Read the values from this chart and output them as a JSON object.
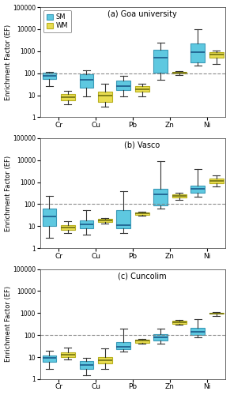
{
  "panels": [
    {
      "title": "(a) Goa university",
      "SM": {
        "Cr": {
          "whislo": 25,
          "q1": 55,
          "med": 75,
          "q3": 105,
          "whishi": 115
        },
        "Cu": {
          "whislo": 9,
          "q1": 22,
          "med": 50,
          "q3": 90,
          "whishi": 135
        },
        "Pb": {
          "whislo": 9,
          "q1": 17,
          "med": 25,
          "q3": 45,
          "whishi": 75
        },
        "Zn": {
          "whislo": 50,
          "q1": 110,
          "med": 500,
          "q3": 1200,
          "whishi": 2500
        },
        "Ni": {
          "whislo": 220,
          "q1": 320,
          "med": 900,
          "q3": 2200,
          "whishi": 10000
        }
      },
      "WM": {
        "Cr": {
          "whislo": 4,
          "q1": 6,
          "med": 8,
          "q3": 11,
          "whishi": 16
        },
        "Cu": {
          "whislo": 3,
          "q1": 5,
          "med": 10,
          "q3": 14,
          "whishi": 33
        },
        "Pb": {
          "whislo": 9,
          "q1": 14,
          "med": 19,
          "q3": 27,
          "whishi": 33
        },
        "Zn": {
          "whislo": 82,
          "q1": 95,
          "med": 105,
          "q3": 114,
          "whishi": 120
        },
        "Ni": {
          "whislo": 260,
          "q1": 500,
          "med": 680,
          "q3": 880,
          "whishi": 1100
        }
      }
    },
    {
      "title": "(b) Vasco",
      "SM": {
        "Cr": {
          "whislo": 3,
          "q1": 10,
          "med": 28,
          "q3": 65,
          "whishi": 230
        },
        "Cu": {
          "whislo": 4,
          "q1": 8,
          "med": 12,
          "q3": 18,
          "whishi": 55
        },
        "Pb": {
          "whislo": 5,
          "q1": 8,
          "med": 11,
          "q3": 55,
          "whishi": 380
        },
        "Zn": {
          "whislo": 65,
          "q1": 88,
          "med": 280,
          "q3": 480,
          "whishi": 9000
        },
        "Ni": {
          "whislo": 210,
          "q1": 340,
          "med": 480,
          "q3": 680,
          "whishi": 3800
        }
      },
      "WM": {
        "Cr": {
          "whislo": 5,
          "q1": 7,
          "med": 9,
          "q3": 11,
          "whishi": 17
        },
        "Cu": {
          "whislo": 13,
          "q1": 15,
          "med": 18,
          "q3": 21,
          "whishi": 24
        },
        "Pb": {
          "whislo": 29,
          "q1": 33,
          "med": 37,
          "q3": 41,
          "whishi": 44
        },
        "Zn": {
          "whislo": 155,
          "q1": 205,
          "med": 245,
          "q3": 285,
          "whishi": 325
        },
        "Ni": {
          "whislo": 620,
          "q1": 900,
          "med": 1100,
          "q3": 1400,
          "whishi": 2000
        }
      }
    },
    {
      "title": "(c) Cuncolim",
      "SM": {
        "Cr": {
          "whislo": 3,
          "q1": 6,
          "med": 9,
          "q3": 12,
          "whishi": 20
        },
        "Cu": {
          "whislo": 1.5,
          "q1": 3,
          "med": 4.5,
          "q3": 6.5,
          "whishi": 9
        },
        "Pb": {
          "whislo": 18,
          "q1": 22,
          "med": 30,
          "q3": 50,
          "whishi": 190
        },
        "Zn": {
          "whislo": 40,
          "q1": 55,
          "med": 78,
          "q3": 108,
          "whishi": 195
        },
        "Ni": {
          "whislo": 82,
          "q1": 100,
          "med": 145,
          "q3": 215,
          "whishi": 530
        }
      },
      "WM": {
        "Cr": {
          "whislo": 8,
          "q1": 10,
          "med": 13,
          "q3": 16,
          "whishi": 28
        },
        "Cu": {
          "whislo": 3,
          "q1": 5,
          "med": 7.5,
          "q3": 10,
          "whishi": 24
        },
        "Pb": {
          "whislo": 41,
          "q1": 46,
          "med": 55,
          "q3": 64,
          "whishi": 69
        },
        "Zn": {
          "whislo": 285,
          "q1": 325,
          "med": 380,
          "q3": 445,
          "whishi": 500
        },
        "Ni": {
          "whislo": 720,
          "q1": 910,
          "med": 960,
          "q3": 1060,
          "whishi": 1120
        }
      }
    }
  ],
  "metals": [
    "Cr",
    "Cu",
    "Pb",
    "Zn",
    "Ni"
  ],
  "sm_color": "#5EC8E0",
  "wm_color": "#E8DC50",
  "sm_edge": "#3A9AB8",
  "wm_edge": "#B8B020",
  "median_sm": "#1A5A8A",
  "median_wm": "#707010",
  "whisker_color": "#333333",
  "ylabel": "Enrichment Factor (EF)",
  "ylim_log": [
    1,
    100000
  ],
  "yticks": [
    1,
    10,
    100,
    1000,
    10000,
    100000
  ],
  "ytick_labels": [
    "1",
    "10",
    "100",
    "1000",
    "10000",
    "100000"
  ],
  "ref_line": 100,
  "bg_color": "#FFFFFF",
  "plot_bg": "#FFFFFF"
}
